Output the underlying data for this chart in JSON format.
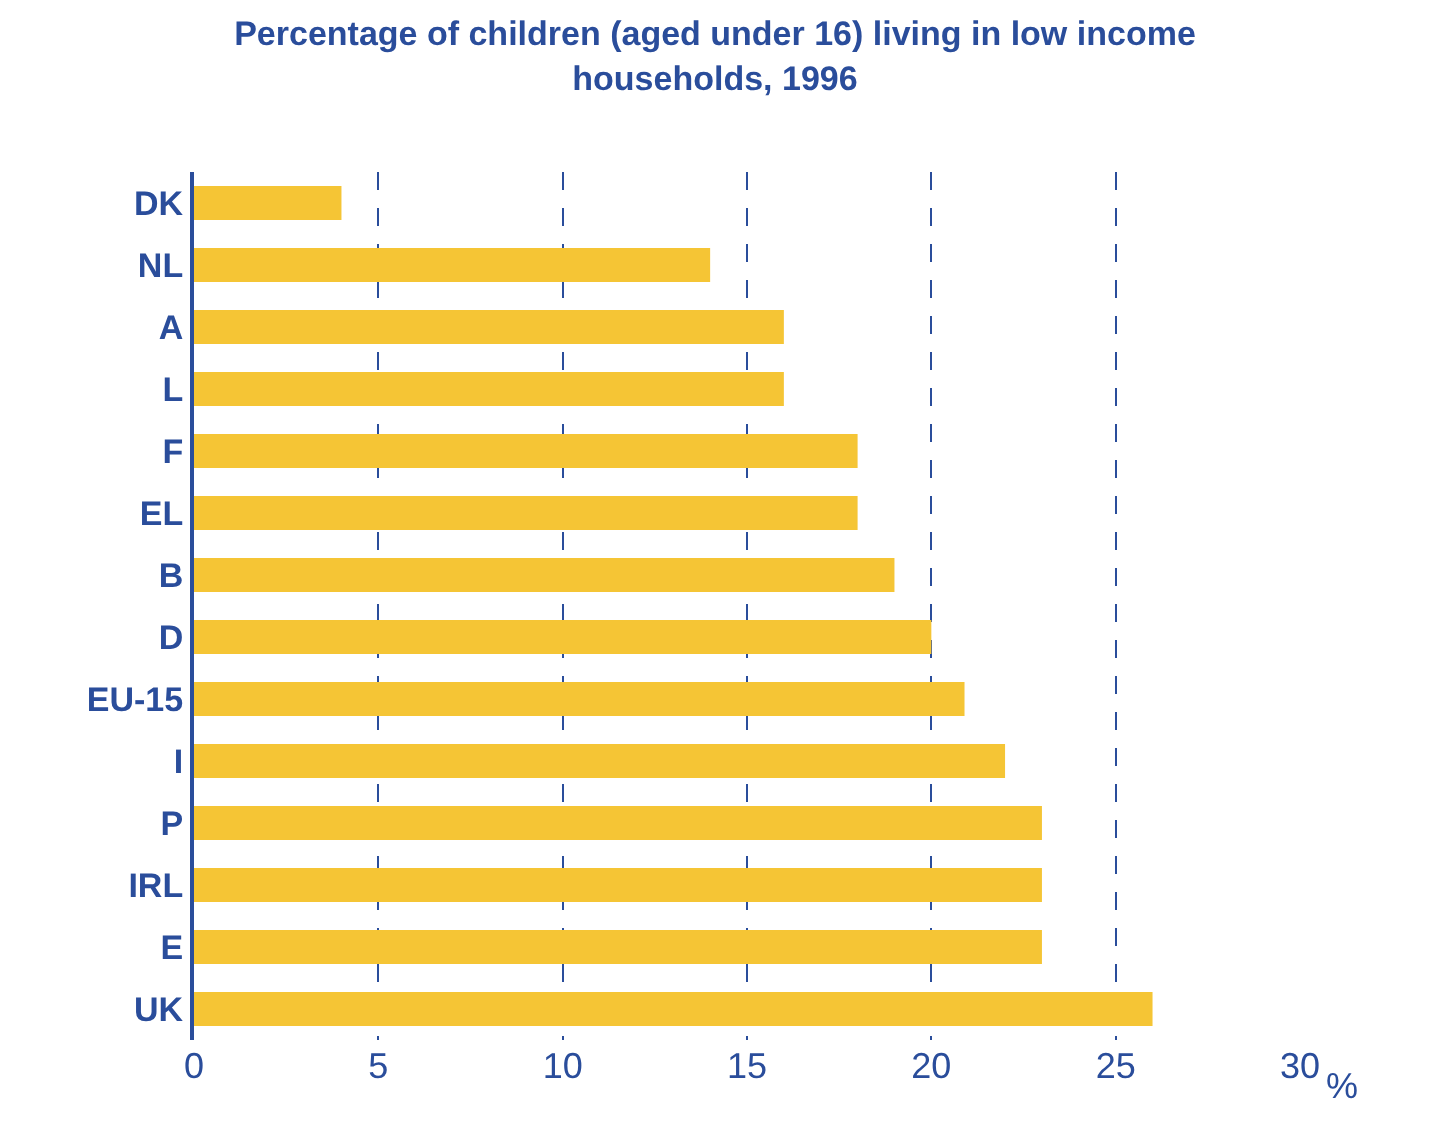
{
  "chart_data": {
    "type": "bar",
    "orientation": "horizontal",
    "title": "Percentage of children (aged under 16) living in low income households, 1996",
    "xlabel": "%",
    "categories": [
      "DK",
      "NL",
      "A",
      "L",
      "F",
      "EL",
      "B",
      "D",
      "EU-15",
      "I",
      "P",
      "IRL",
      "E",
      "UK"
    ],
    "values": [
      4,
      14,
      16,
      16,
      18,
      18,
      19,
      20,
      20.9,
      22,
      23,
      23,
      23,
      26
    ],
    "color": "#f5c535",
    "xlim": [
      0,
      30
    ],
    "xticks": [
      0,
      5,
      10,
      15,
      20,
      25,
      30
    ],
    "grid": "x",
    "legend": false
  }
}
